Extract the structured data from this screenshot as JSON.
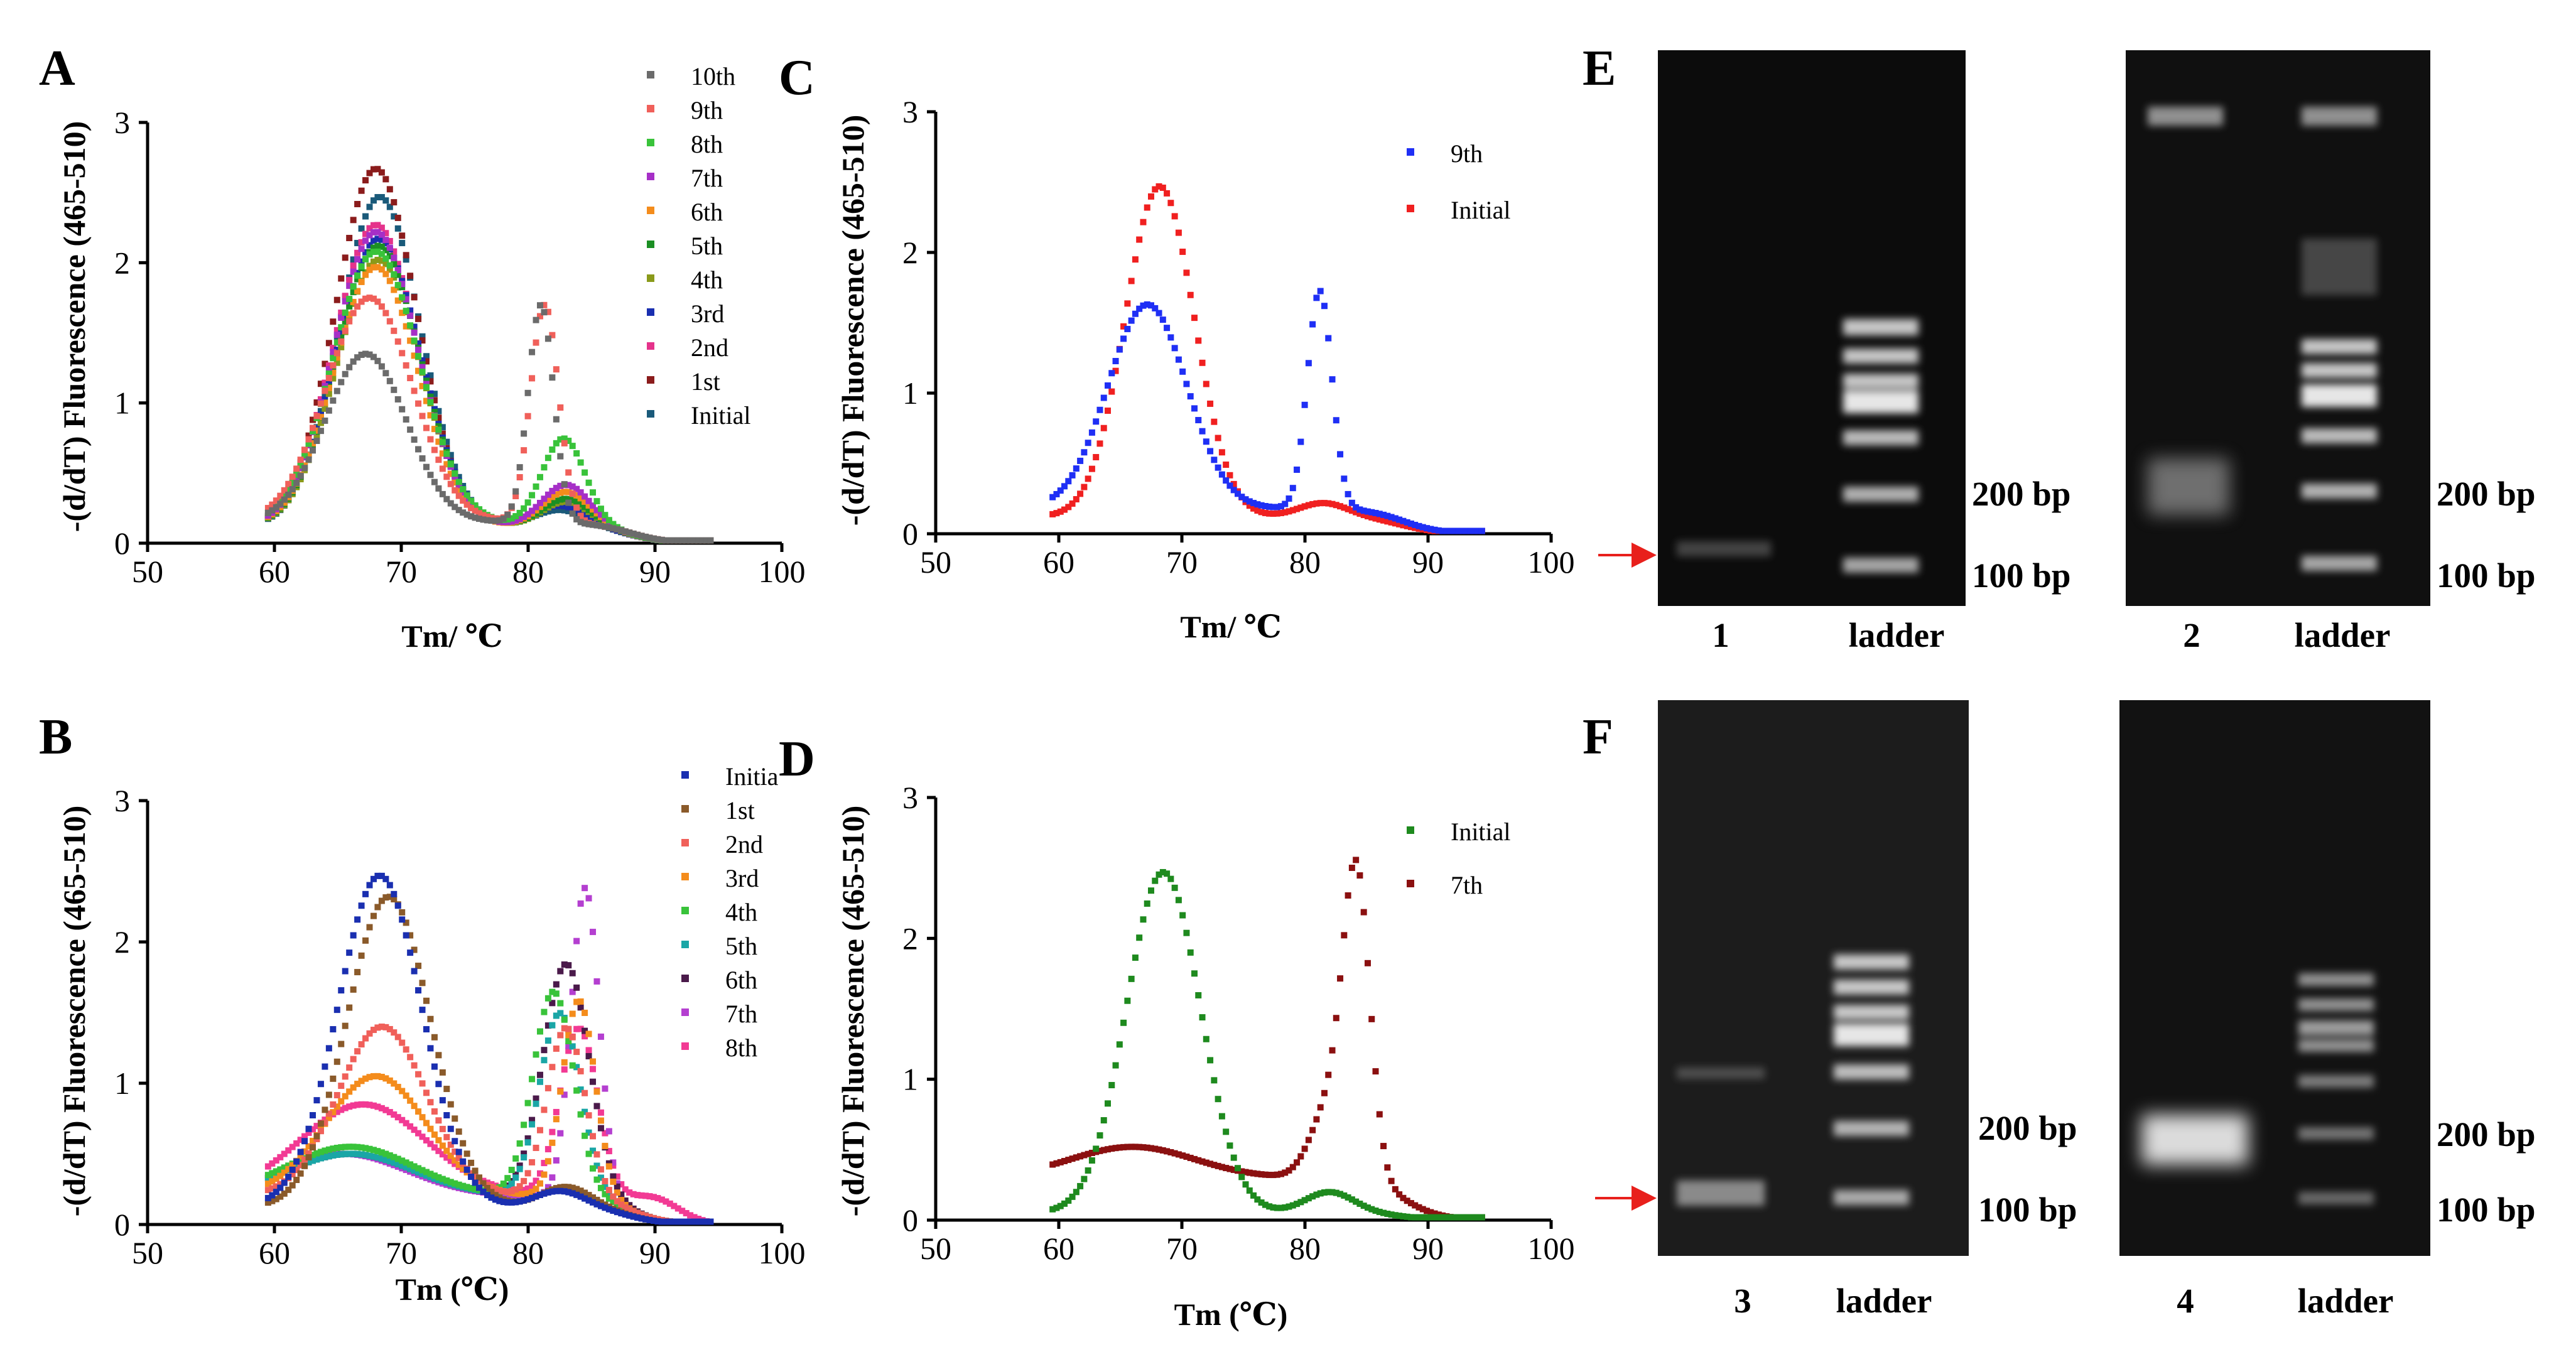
{
  "figure": {
    "panel_letters": [
      "A",
      "B",
      "C",
      "D",
      "E",
      "F"
    ]
  },
  "chart_data": [
    {
      "panel": "A",
      "type": "scatter",
      "xlabel": "Tm/ ℃",
      "ylabel": "-(d/dT) Fluorescence (465-510)",
      "xlim": [
        50,
        100
      ],
      "ylim": [
        0,
        3
      ],
      "xticks": [
        50,
        60,
        70,
        80,
        90,
        100
      ],
      "yticks": [
        0,
        1,
        2,
        3
      ],
      "legend_position": "right",
      "series": [
        {
          "name": "10th",
          "color": "#6b6b6b",
          "peaks": [
            [
              67.2,
              1.2,
              3.2
            ],
            [
              81.0,
              1.55,
              1.0
            ]
          ],
          "base": 0.15
        },
        {
          "name": "9th",
          "color": "#f0605a",
          "peaks": [
            [
              67.5,
              1.6,
              3.4
            ],
            [
              81.3,
              1.55,
              1.1
            ]
          ],
          "base": 0.15
        },
        {
          "name": "8th",
          "color": "#39c33a",
          "peaks": [
            [
              68.0,
              1.95,
              3.4
            ],
            [
              82.8,
              0.62,
              1.7
            ]
          ],
          "base": 0.13
        },
        {
          "name": "7th",
          "color": "#a62fc7",
          "peaks": [
            [
              68.0,
              2.1,
              3.3
            ],
            [
              83.0,
              0.3,
              1.9
            ]
          ],
          "base": 0.12
        },
        {
          "name": "6th",
          "color": "#f48c1c",
          "peaks": [
            [
              68.0,
              1.85,
              3.3
            ],
            [
              83.0,
              0.25,
              1.9
            ]
          ],
          "base": 0.12
        },
        {
          "name": "5th",
          "color": "#1b8f23",
          "peaks": [
            [
              68.2,
              2.0,
              3.3
            ],
            [
              83.0,
              0.2,
              1.9
            ]
          ],
          "base": 0.12
        },
        {
          "name": "4th",
          "color": "#8a9a1a",
          "peaks": [
            [
              68.2,
              1.9,
              3.3
            ],
            [
              83.0,
              0.18,
              1.9
            ]
          ],
          "base": 0.12
        },
        {
          "name": "3rd",
          "color": "#1a2fb0",
          "peaks": [
            [
              68.2,
              2.05,
              3.3
            ],
            [
              82.5,
              0.15,
              2.0
            ]
          ],
          "base": 0.12
        },
        {
          "name": "2nd",
          "color": "#e5338b",
          "peaks": [
            [
              68.0,
              2.15,
              3.3
            ],
            [
              82.5,
              0.18,
              2.0
            ]
          ],
          "base": 0.12
        },
        {
          "name": "1st",
          "color": "#8b1c1c",
          "peaks": [
            [
              68.0,
              2.55,
              3.2
            ],
            [
              82.5,
              0.15,
              2.0
            ]
          ],
          "base": 0.12
        },
        {
          "name": "Initial",
          "color": "#1a5a7a",
          "peaks": [
            [
              68.3,
              2.35,
              3.2
            ],
            [
              82.5,
              0.12,
              2.0
            ]
          ],
          "base": 0.12
        }
      ]
    },
    {
      "panel": "B",
      "type": "scatter",
      "xlabel": "Tm (℃)",
      "ylabel": "-(d/dT) Fluorescence (465-510)",
      "xlim": [
        50,
        100
      ],
      "ylim": [
        0,
        3
      ],
      "xticks": [
        50,
        60,
        70,
        80,
        90,
        100
      ],
      "yticks": [
        0,
        1,
        2,
        3
      ],
      "legend_position": "right",
      "series": [
        {
          "name": "Initia",
          "color": "#1a2fb0",
          "peaks": [
            [
              68.3,
              2.35,
              3.3
            ],
            [
              82.5,
              0.12,
              2.0
            ]
          ],
          "base": 0.12
        },
        {
          "name": "1st",
          "color": "#8a5a2a",
          "peaks": [
            [
              69.0,
              2.2,
              3.3
            ],
            [
              83.0,
              0.15,
              2.0
            ]
          ],
          "base": 0.12
        },
        {
          "name": "2nd",
          "color": "#f0605a",
          "peaks": [
            [
              68.5,
              1.2,
              3.5
            ],
            [
              83.0,
              1.2,
              1.5
            ]
          ],
          "base": 0.2
        },
        {
          "name": "3rd",
          "color": "#f48c1c",
          "peaks": [
            [
              68.0,
              0.85,
              4.0
            ],
            [
              84.0,
              1.4,
              1.3
            ]
          ],
          "base": 0.2
        },
        {
          "name": "4th",
          "color": "#39c33a",
          "peaks": [
            [
              66.0,
              0.35,
              5.0
            ],
            [
              82.0,
              1.45,
              1.6
            ]
          ],
          "base": 0.2
        },
        {
          "name": "5th",
          "color": "#1aa6a6",
          "peaks": [
            [
              66.0,
              0.3,
              5.0
            ],
            [
              82.5,
              1.3,
              1.6
            ]
          ],
          "base": 0.2
        },
        {
          "name": "6th",
          "color": "#4a1a4a",
          "peaks": [
            [
              66.0,
              0.3,
              5.0
            ],
            [
              83.0,
              1.65,
              1.8
            ]
          ],
          "base": 0.2
        },
        {
          "name": "7th",
          "color": "#b43fd0",
          "peaks": [
            [
              65.5,
              0.3,
              5.0
            ],
            [
              84.5,
              2.2,
              1.1
            ]
          ],
          "base": 0.2
        },
        {
          "name": "8th",
          "color": "#f23a94",
          "peaks": [
            [
              67.0,
              0.65,
              5.0
            ],
            [
              84.0,
              1.2,
              1.5
            ],
            [
              90.0,
              0.15,
              2.0
            ]
          ],
          "base": 0.2
        }
      ]
    },
    {
      "panel": "C",
      "type": "scatter",
      "xlabel": "Tm/ ℃",
      "ylabel": "-(d/dT) Fluorescence (465-510)",
      "xlim": [
        50,
        100
      ],
      "ylim": [
        0,
        3
      ],
      "xticks": [
        50,
        60,
        70,
        80,
        90,
        100
      ],
      "yticks": [
        0,
        1,
        2,
        3
      ],
      "legend_position": "top-right",
      "series": [
        {
          "name": "9th",
          "color": "#1f2ff5",
          "peaks": [
            [
              67.2,
              1.45,
              3.2
            ],
            [
              81.2,
              1.55,
              1.0
            ]
          ],
          "base": 0.18
        },
        {
          "name": "Initial",
          "color": "#f02020",
          "peaks": [
            [
              68.2,
              2.35,
              2.8
            ],
            [
              81.5,
              0.1,
              2.0
            ]
          ],
          "base": 0.12
        }
      ]
    },
    {
      "panel": "D",
      "type": "scatter",
      "xlabel": "Tm (℃)",
      "ylabel": "-(d/dT) Fluorescence (465-510)",
      "xlim": [
        50,
        100
      ],
      "ylim": [
        0,
        3
      ],
      "xticks": [
        50,
        60,
        70,
        80,
        90,
        100
      ],
      "yticks": [
        0,
        1,
        2,
        3
      ],
      "legend_position": "top-right",
      "series": [
        {
          "name": "Initial",
          "color": "#1e8a1e",
          "peaks": [
            [
              68.5,
              2.42,
              3.0
            ],
            [
              82.0,
              0.15,
              2.0
            ]
          ],
          "base": 0.05
        },
        {
          "name": "7th",
          "color": "#8b1010",
          "peaks": [
            [
              66.0,
              0.22,
              5.0
            ],
            [
              84.2,
              2.1,
              1.1
            ],
            [
              82.0,
              0.5,
              1.5
            ]
          ],
          "base": 0.3
        }
      ]
    }
  ],
  "gels": {
    "E": {
      "gel1": {
        "lane": "1",
        "ladder": "ladder",
        "mark_200": "200 bp",
        "mark_100": "100 bp"
      },
      "gel2": {
        "lane": "2",
        "ladder": "ladder",
        "mark_200": "200 bp",
        "mark_100": "100 bp"
      }
    },
    "F": {
      "gel3": {
        "lane": "3",
        "ladder": "ladder",
        "mark_200": "200 bp",
        "mark_100": "100 bp"
      },
      "gel4": {
        "lane": "4",
        "ladder": "ladder",
        "mark_200": "200 bp",
        "mark_100": "100 bp"
      }
    }
  }
}
